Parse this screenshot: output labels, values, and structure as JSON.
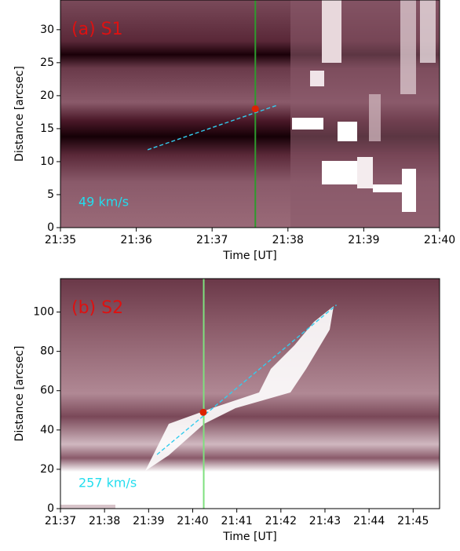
{
  "chart_data": [
    {
      "type": "time-distance",
      "label": "(a) S1",
      "speed_label": "49 km/s",
      "x_label": "Time [UT]",
      "y_label": "Distance [arcsec]",
      "xlim": [
        35,
        40
      ],
      "xticks": [
        {
          "value": 35,
          "label": "21:35"
        },
        {
          "value": 36,
          "label": "21:36"
        },
        {
          "value": 37,
          "label": "21:37"
        },
        {
          "value": 38,
          "label": "21:38"
        },
        {
          "value": 39,
          "label": "21:39"
        },
        {
          "value": 40,
          "label": "21:40"
        }
      ],
      "ylim": [
        0,
        34.5
      ],
      "yticks": [
        0,
        5,
        10,
        15,
        20,
        25,
        30
      ],
      "vline": {
        "x": 37.57,
        "color": "#2e9a2e"
      },
      "fit": {
        "x": [
          36.15,
          37.87
        ],
        "y": [
          11.8,
          18.6
        ],
        "color": "#33ccee"
      },
      "point": {
        "x": 37.57,
        "y": 18,
        "color": "#dd2200"
      }
    },
    {
      "type": "time-distance",
      "label": "(b) S2",
      "speed_label": "257 km/s",
      "x_label": "Time [UT]",
      "y_label": "Distance [arcsec]",
      "xlim": [
        37,
        45.6
      ],
      "xticks": [
        {
          "value": 37,
          "label": "21:37"
        },
        {
          "value": 38,
          "label": "21:38"
        },
        {
          "value": 39,
          "label": "21:39"
        },
        {
          "value": 40,
          "label": "21:40"
        },
        {
          "value": 41,
          "label": "21:41"
        },
        {
          "value": 42,
          "label": "21:42"
        },
        {
          "value": 43,
          "label": "21:43"
        },
        {
          "value": 44,
          "label": "21:44"
        },
        {
          "value": 45,
          "label": "21:45"
        }
      ],
      "ylim": [
        0,
        117
      ],
      "yticks": [
        0,
        20,
        40,
        60,
        80,
        100
      ],
      "vline": {
        "x": 40.25,
        "color": "#7ee07e"
      },
      "fit": {
        "x": [
          39.19,
          43.26
        ],
        "y": [
          27.5,
          103.6
        ],
        "color": "#33ccee"
      },
      "point": {
        "x": 40.24,
        "y": 49,
        "color": "#dd2200"
      }
    }
  ]
}
